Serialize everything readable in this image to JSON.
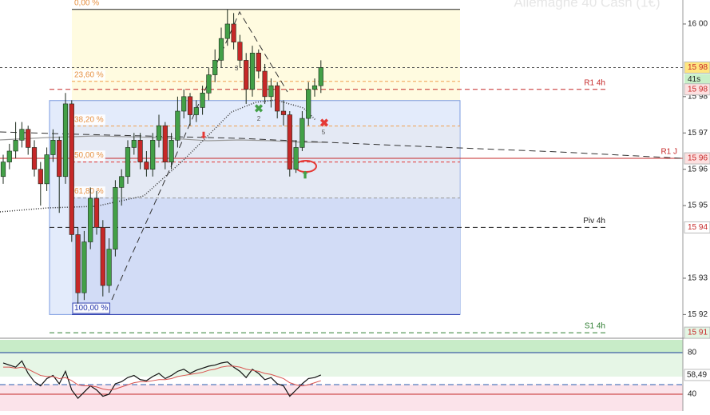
{
  "chart_data": {
    "type": "candlestick",
    "watermark": "Allemagne 40 Cash (1€)",
    "ylim": [
      15913.7,
      16006.6
    ],
    "yticks": [
      {
        "value": 16000,
        "label": "16 00"
      },
      {
        "value": 15980,
        "label": "15 98"
      },
      {
        "value": 15970,
        "label": "15 97"
      },
      {
        "value": 15960,
        "label": "15 96"
      },
      {
        "value": 15950,
        "label": "15 95"
      },
      {
        "value": 15930,
        "label": "15 93"
      },
      {
        "value": 15920,
        "label": "15 92"
      }
    ],
    "up_color": "#43a047",
    "down_color": "#c62828",
    "open": [
      15958,
      15962,
      15965,
      15968,
      15971,
      15966,
      15960,
      15956,
      15964,
      15968,
      15958,
      15978,
      15942,
      15926,
      15940,
      15952,
      15944,
      15928,
      15938,
      15955,
      15958,
      15966,
      15968,
      15962,
      15960,
      15968,
      15972,
      15962,
      15968,
      15976,
      15980,
      15975,
      15977,
      15981,
      15986,
      15990,
      15996,
      16000,
      15995,
      15990,
      15982,
      15992,
      15987,
      15980,
      15983,
      15976,
      15975,
      15960,
      15966,
      15974,
      15982,
      15983
    ],
    "high": [
      15964,
      15967,
      15973,
      15973,
      15972,
      15968,
      15962,
      15966,
      15971,
      15969,
      15981,
      15979,
      15944,
      15943,
      15955,
      15954,
      15946,
      15941,
      15957,
      15960,
      15968,
      15970,
      15970,
      15965,
      15970,
      15975,
      15973,
      15970,
      15980,
      15982,
      15981,
      15979,
      15983,
      15988,
      15993,
      15999,
      16004,
      16003,
      15997,
      15992,
      15994,
      15993,
      15989,
      15985,
      15984,
      15979,
      15976,
      15968,
      15976,
      15984,
      15985,
      15990
    ],
    "low": [
      15956,
      15960,
      15963,
      15966,
      15964,
      15958,
      15950,
      15954,
      15962,
      15948,
      15956,
      15940,
      15923,
      15924,
      15938,
      15942,
      15925,
      15926,
      15936,
      15950,
      15956,
      15964,
      15960,
      15958,
      15958,
      15966,
      15960,
      15960,
      15966,
      15974,
      15972,
      15973,
      15975,
      15979,
      15984,
      15988,
      15994,
      15993,
      15988,
      15978,
      15980,
      15985,
      15978,
      15977,
      15974,
      15972,
      15958,
      15959,
      15965,
      15972,
      15980,
      15981
    ],
    "close": [
      15962,
      15965,
      15968,
      15971,
      15966,
      15960,
      15956,
      15964,
      15968,
      15958,
      15978,
      15942,
      15926,
      15940,
      15952,
      15944,
      15928,
      15938,
      15955,
      15958,
      15966,
      15968,
      15962,
      15960,
      15968,
      15972,
      15962,
      15968,
      15976,
      15980,
      15975,
      15977,
      15981,
      15986,
      15990,
      15996,
      16000,
      15995,
      15990,
      15982,
      15992,
      15987,
      15980,
      15983,
      15976,
      15975,
      15960,
      15966,
      15974,
      15982,
      15983,
      15988
    ],
    "fib_levels": [
      {
        "value": 16004,
        "label": "0,00 %"
      },
      {
        "value": 15984.2,
        "label": "23,60 %"
      },
      {
        "value": 15971.9,
        "label": "38,20 %"
      },
      {
        "value": 15962,
        "label": "50,00 %"
      },
      {
        "value": 15952.1,
        "label": "61,80 %"
      },
      {
        "value": 15920,
        "label": "100,00 %"
      }
    ],
    "pivot_levels": [
      {
        "value": 15982,
        "label": "R1 4h",
        "color": "#c62828"
      },
      {
        "value": 15963,
        "label": "R1 J",
        "color": "#c62828"
      },
      {
        "value": 15944,
        "label": "Piv 4h",
        "color": "#222222"
      },
      {
        "value": 15915,
        "label": "S1 4h",
        "color": "#2e7d32"
      }
    ],
    "axis_markers": [
      {
        "value": 15988,
        "label": "15 98",
        "color": "#ffe680"
      },
      {
        "value": 15982,
        "label": "15 98",
        "color": "#fde0e0"
      },
      {
        "value": 15963,
        "label": "15 96",
        "color": "#fde0e0"
      },
      {
        "value": 15944,
        "label": "15 94",
        "color": "#ffffff"
      },
      {
        "value": 15915,
        "label": "15 91",
        "color": "#e3f5e3"
      }
    ],
    "countdown": "41s",
    "pattern_labels": [
      "3",
      "2",
      "5"
    ],
    "oscillator": {
      "y2lim": [
        23.8,
        92.3
      ],
      "y2ticks": [
        80,
        40
      ],
      "series": [
        {
          "color": "#111111",
          "values": [
            70,
            68,
            66,
            72,
            60,
            52,
            48,
            55,
            58,
            50,
            62,
            44,
            36,
            42,
            48,
            44,
            38,
            40,
            50,
            52,
            56,
            58,
            54,
            53,
            57,
            60,
            55,
            58,
            62,
            64,
            60,
            63,
            65,
            67,
            68,
            70,
            71,
            66,
            62,
            56,
            64,
            60,
            54,
            56,
            50,
            48,
            38,
            44,
            50,
            55,
            56,
            58.49
          ],
          "value_labels": [
            null,
            null,
            null,
            null,
            null,
            null,
            null,
            null,
            null,
            null,
            null,
            null,
            null,
            null,
            null,
            null,
            null,
            null,
            null,
            null,
            null,
            null,
            null,
            null,
            null,
            null,
            null,
            null,
            null,
            null,
            null,
            null,
            null,
            null,
            null,
            null,
            null,
            null,
            null,
            null,
            null,
            null,
            null,
            null,
            null,
            null,
            null,
            null,
            null,
            null,
            null,
            "58,49"
          ]
        },
        {
          "color": "#d9534f",
          "values": [
            66,
            66,
            65,
            66,
            64,
            61,
            58,
            57,
            57,
            55,
            56,
            53,
            49,
            48,
            48,
            47,
            45,
            44,
            45,
            47,
            49,
            51,
            52,
            52,
            53,
            54,
            54,
            55,
            57,
            58,
            59,
            60,
            61,
            63,
            64,
            66,
            67,
            67,
            66,
            64,
            63,
            62,
            60,
            59,
            57,
            55,
            51,
            49,
            48,
            49,
            51,
            53
          ]
        }
      ]
    }
  }
}
